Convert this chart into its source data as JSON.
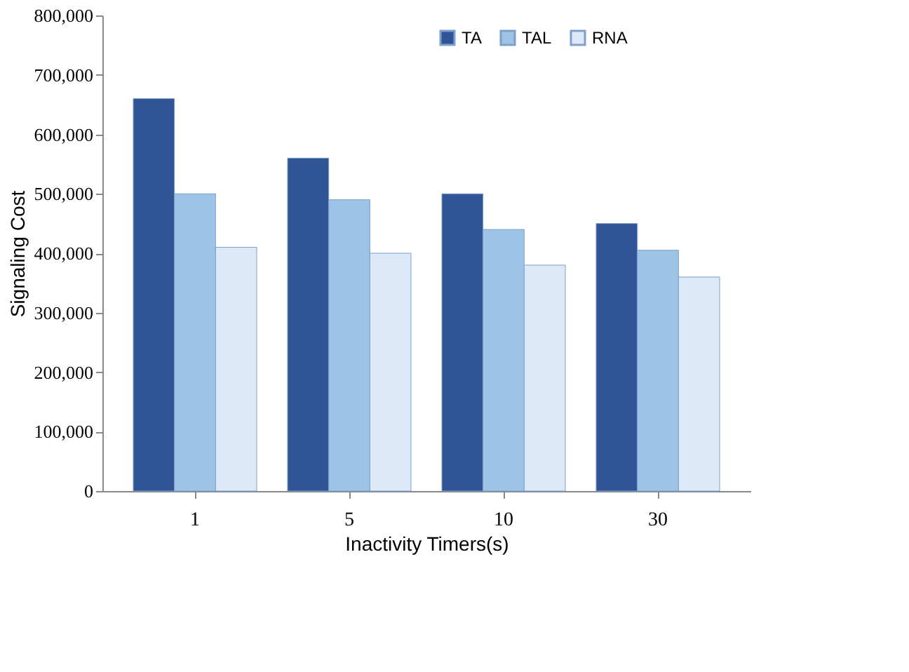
{
  "chart_data": {
    "type": "bar",
    "xlabel": "Inactivity Timers(s)",
    "ylabel": "Signaling Cost",
    "categories": [
      "1",
      "5",
      "10",
      "30"
    ],
    "series": [
      {
        "name": "TA",
        "color": "#2f5597",
        "values": [
          660000,
          560000,
          500000,
          450000
        ]
      },
      {
        "name": "TAL",
        "color": "#9dc3e6",
        "values": [
          500000,
          490000,
          440000,
          405000
        ]
      },
      {
        "name": "RNA",
        "color": "#dce9f8",
        "values": [
          410000,
          400000,
          380000,
          360000
        ]
      }
    ],
    "ylim": [
      0,
      800000
    ],
    "yticks": [
      0,
      {
        "value": 100000,
        "label": "100,000"
      },
      {
        "value": 200000,
        "label": "200,000"
      },
      {
        "value": 300000,
        "label": "300,000"
      },
      {
        "value": 400000,
        "label": "400,000"
      },
      {
        "value": 500000,
        "label": "500,000"
      },
      {
        "value": 600000,
        "label": "600,000"
      },
      {
        "value": 700000,
        "label": "700,000"
      },
      {
        "value": 800000,
        "label": "800,000"
      }
    ],
    "grid": false,
    "legend": "top"
  }
}
